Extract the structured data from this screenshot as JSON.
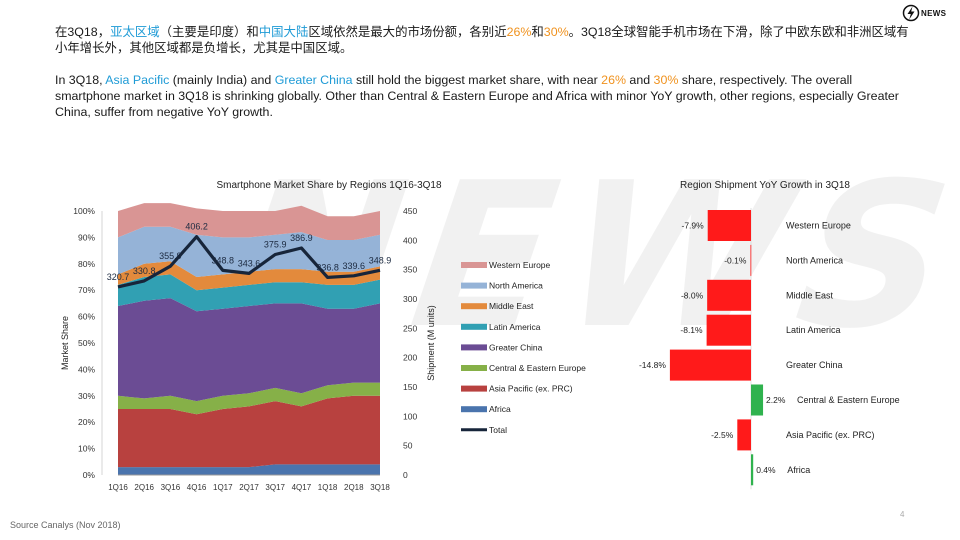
{
  "brand": {
    "logo_label": "NEWS",
    "watermark_text": "NEWS"
  },
  "text": {
    "cn": {
      "p1": "在3Q18，",
      "asia": "亚太区域",
      "p2": "（主要是印度）和",
      "china": "中国大陆",
      "p3": "区域依然是最大的市场份额，各别近",
      "pct1": "26%",
      "p4": "和",
      "pct2": "30%",
      "p5": "。3Q18全球智能手机市场在下滑，除了中欧东欧和非洲区域有小年增长外，其他区域都是负增长，尤其是中国区域。"
    },
    "en": {
      "p1": "In 3Q18, ",
      "asia": "Asia Pacific",
      "p2": " (mainly India) and ",
      "china": "Greater China",
      "p3": " still hold the biggest market share, with near ",
      "pct1": "26%",
      "p4": " and ",
      "pct2": "30%",
      "p5": " share, respectively. The overall smartphone market in 3Q18 is shrinking globally. Other than Central & Eastern Europe and Africa with minor YoY growth, other regions, especially Greater China, suffer from negative YoY growth."
    }
  },
  "chart_data": [
    {
      "type": "area",
      "title": "Smartphone Market Share by Regions 1Q16-3Q18",
      "ylabel": "Market Share",
      "y2label": "Shipment (M units)",
      "ylim": [
        0,
        100
      ],
      "y2lim": [
        0,
        450
      ],
      "yticks": [
        "0%",
        "10%",
        "20%",
        "30%",
        "40%",
        "50%",
        "60%",
        "70%",
        "80%",
        "90%",
        "100%"
      ],
      "y2ticks": [
        "0",
        "50",
        "100",
        "150",
        "200",
        "250",
        "300",
        "350",
        "400",
        "450"
      ],
      "categories": [
        "1Q16",
        "2Q16",
        "3Q16",
        "4Q16",
        "1Q17",
        "2Q17",
        "3Q17",
        "4Q17",
        "1Q18",
        "2Q18",
        "3Q18"
      ],
      "stack_order_bottom_to_top": [
        "Africa",
        "Asia Pacific (ex. PRC)",
        "Central & Eastern Europe",
        "Greater China",
        "Latin America",
        "Middle East",
        "North America",
        "Western Europe"
      ],
      "series": [
        {
          "name": "Western Europe",
          "color": "#d99594",
          "values": [
            10,
            9,
            9,
            10,
            10,
            10,
            9,
            10,
            9,
            9,
            9
          ]
        },
        {
          "name": "North America",
          "color": "#95b3d7",
          "values": [
            14,
            14,
            13,
            16,
            14,
            13,
            13,
            14,
            12,
            12,
            12
          ]
        },
        {
          "name": "Middle East",
          "color": "#e38a3c",
          "values": [
            4,
            5,
            5,
            5,
            5,
            5,
            5,
            5,
            5,
            5,
            5
          ]
        },
        {
          "name": "Latin America",
          "color": "#31a0b3",
          "values": [
            8,
            9,
            9,
            8,
            8,
            8,
            8,
            8,
            9,
            9,
            9
          ]
        },
        {
          "name": "Greater China",
          "color": "#6b4c94",
          "values": [
            34,
            37,
            37,
            34,
            33,
            33,
            32,
            34,
            29,
            28,
            30
          ]
        },
        {
          "name": "Central & Eastern Europe",
          "color": "#86b048",
          "values": [
            5,
            4,
            5,
            5,
            5,
            5,
            5,
            5,
            5,
            5,
            5
          ]
        },
        {
          "name": "Asia Pacific (ex. PRC)",
          "color": "#b8413f",
          "values": [
            22,
            22,
            22,
            20,
            22,
            23,
            24,
            22,
            25,
            26,
            26
          ]
        },
        {
          "name": "Africa",
          "color": "#4a74ad",
          "values": [
            3,
            3,
            3,
            3,
            3,
            3,
            4,
            4,
            4,
            4,
            4
          ]
        }
      ],
      "total": {
        "name": "Total",
        "color": "#17253a",
        "values": [
          320.7,
          330.8,
          355.9,
          406.2,
          348.8,
          343.6,
          375.9,
          386.9,
          336.8,
          339.6,
          348.9
        ],
        "labels": [
          "320.7",
          "330.8",
          "355.9",
          "406.2",
          "348.8",
          "343.6",
          "375.9",
          "386.9",
          "336.8",
          "339.6",
          "348.9"
        ]
      },
      "legend_position": "right"
    },
    {
      "type": "bar",
      "orientation": "horizontal",
      "title": "Region Shipment YoY Growth in 3Q18",
      "categories": [
        "Western Europe",
        "North America",
        "Middle East",
        "Latin America",
        "Greater China",
        "Central & Eastern Europe",
        "Asia Pacific (ex. PRC)",
        "Africa"
      ],
      "values": [
        -7.9,
        -0.1,
        -8.0,
        -8.1,
        -14.8,
        2.2,
        -2.5,
        0.4
      ],
      "labels": [
        "-7.9%",
        "-0.1%",
        "-8.0%",
        "-8.1%",
        "-14.8%",
        "2.2%",
        "-2.5%",
        "0.4%"
      ],
      "negative_color": "#ff1a1a",
      "positive_color": "#2fb24e"
    }
  ],
  "footer": {
    "source": "Source Canalys (Nov 2018)",
    "page": "4"
  }
}
